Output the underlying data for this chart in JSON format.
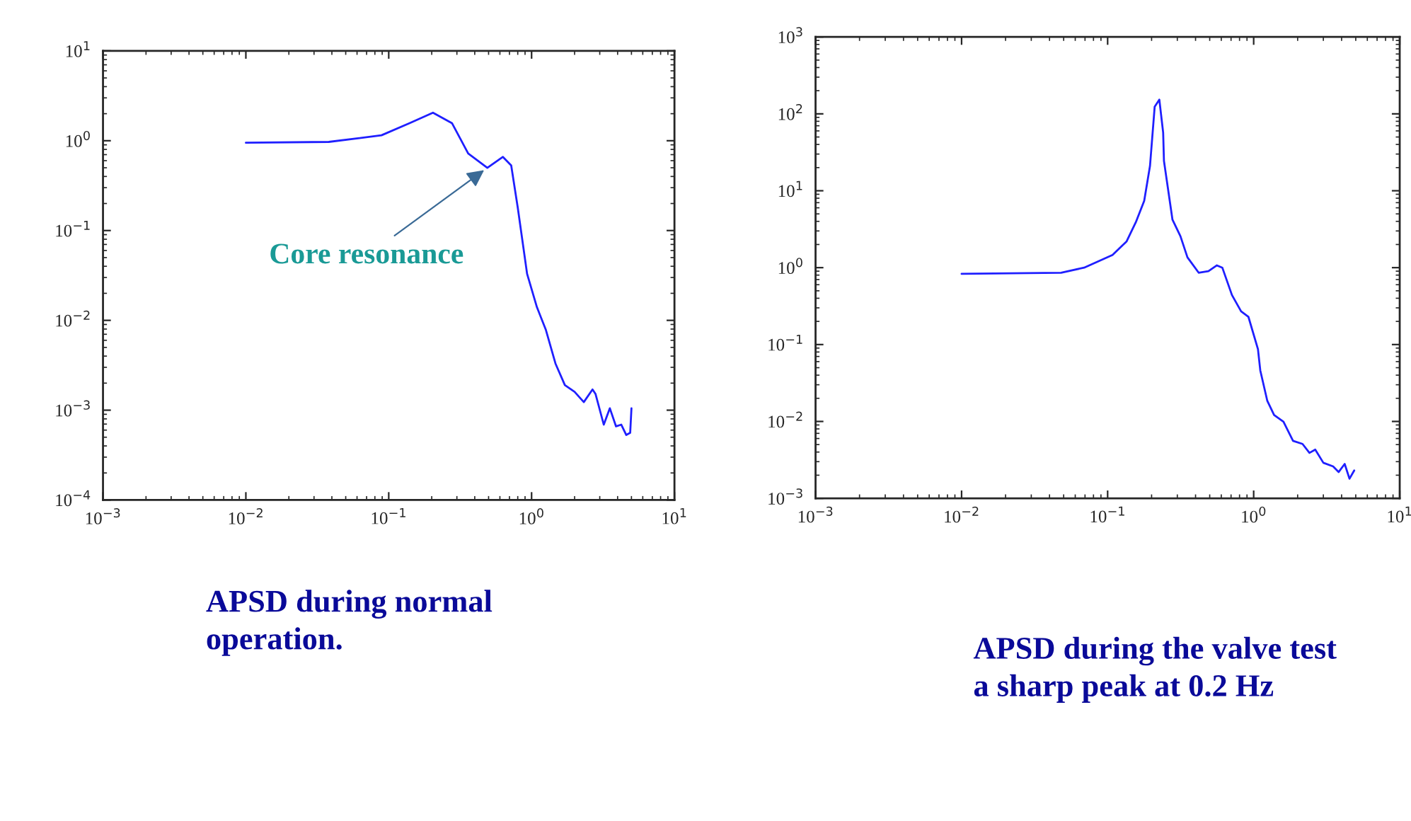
{
  "chart_data": [
    {
      "type": "line",
      "log": "xy",
      "grid": false,
      "marker": "none",
      "line_style": "solid",
      "xlim": [
        0.001,
        10
      ],
      "ylim": [
        0.0001,
        10
      ],
      "xticks": [
        {
          "value": 0.001,
          "label": "10$^{−3}$"
        },
        {
          "value": 0.01,
          "label": "10$^{−2}$"
        },
        {
          "value": 0.1,
          "label": "10$^{−1}$"
        },
        {
          "value": 1,
          "label": "10$^{0}$"
        },
        {
          "value": 10,
          "label": "10$^{1}$"
        }
      ],
      "yticks": [
        {
          "value": 0.0001,
          "label": "10$^{−4}$"
        },
        {
          "value": 0.001,
          "label": "10$^{−3}$"
        },
        {
          "value": 0.01,
          "label": "10$^{−2}$"
        },
        {
          "value": 0.1,
          "label": "10$^{−1}$"
        },
        {
          "value": 1,
          "label": "10$^{0}$"
        },
        {
          "value": 10,
          "label": "10$^{1}$"
        }
      ],
      "series": [
        {
          "color": "#1f1fff",
          "x": [
            0.01,
            0.038,
            0.089,
            0.14,
            0.204,
            0.277,
            0.36,
            0.49,
            0.63,
            0.72,
            0.8,
            0.93,
            1.09,
            1.26,
            1.47,
            1.71,
            2.0,
            2.32,
            2.67,
            2.8,
            3.2,
            3.53,
            3.9,
            4.24,
            4.6,
            4.9,
            5.0
          ],
          "values": [
            0.95,
            0.97,
            1.15,
            1.57,
            2.05,
            1.57,
            0.72,
            0.5,
            0.66,
            0.53,
            0.18,
            0.033,
            0.014,
            0.0078,
            0.0033,
            0.0019,
            0.0016,
            0.00123,
            0.0017,
            0.00152,
            0.00069,
            0.00105,
            0.00066,
            0.00069,
            0.00053,
            0.00056,
            0.00105
          ]
        }
      ],
      "annotations": [
        {
          "text": "Core resonance",
          "x": 0.49,
          "y": 0.5
        },
        "APSD during normal\noperation."
      ]
    },
    {
      "type": "line",
      "log": "xy",
      "grid": false,
      "marker": "none",
      "line_style": "solid",
      "xlim": [
        0.001,
        10
      ],
      "ylim": [
        0.001,
        1000
      ],
      "xticks": [
        {
          "value": 0.001,
          "label": "10$^{−3}$"
        },
        {
          "value": 0.01,
          "label": "10$^{−2}$"
        },
        {
          "value": 0.1,
          "label": "10$^{−1}$"
        },
        {
          "value": 1,
          "label": "10$^{0}$"
        },
        {
          "value": 10,
          "label": "10$^{1}$"
        }
      ],
      "yticks": [
        {
          "value": 0.001,
          "label": "10$^{−3}$"
        },
        {
          "value": 0.01,
          "label": "10$^{−2}$"
        },
        {
          "value": 0.1,
          "label": "10$^{−1}$"
        },
        {
          "value": 1,
          "label": "10$^{0}$"
        },
        {
          "value": 10,
          "label": "10$^{1}$"
        },
        {
          "value": 100,
          "label": "10$^{2}$"
        },
        {
          "value": 1000,
          "label": "10$^{3}$"
        }
      ],
      "series": [
        {
          "color": "#1f1fff",
          "x": [
            0.01,
            0.048,
            0.069,
            0.108,
            0.135,
            0.156,
            0.178,
            0.195,
            0.21,
            0.226,
            0.24,
            0.243,
            0.278,
            0.315,
            0.352,
            0.42,
            0.49,
            0.56,
            0.61,
            0.71,
            0.82,
            0.92,
            1.07,
            1.11,
            1.24,
            1.38,
            1.6,
            1.86,
            2.16,
            2.41,
            2.64,
            3.0,
            3.5,
            3.82,
            4.2,
            4.53,
            4.88
          ],
          "values": [
            0.83,
            0.86,
            1.0,
            1.46,
            2.2,
            3.9,
            7.4,
            21,
            124,
            153,
            57,
            24.5,
            4.2,
            2.57,
            1.36,
            0.86,
            0.9,
            1.07,
            1.0,
            0.44,
            0.27,
            0.23,
            0.087,
            0.046,
            0.0185,
            0.0121,
            0.0099,
            0.0056,
            0.0051,
            0.0039,
            0.0043,
            0.0029,
            0.0026,
            0.0022,
            0.0028,
            0.0018,
            0.0023
          ]
        }
      ],
      "annotations": [
        "APSD during the valve test\na sharp peak at 0.2 Hz"
      ]
    }
  ]
}
